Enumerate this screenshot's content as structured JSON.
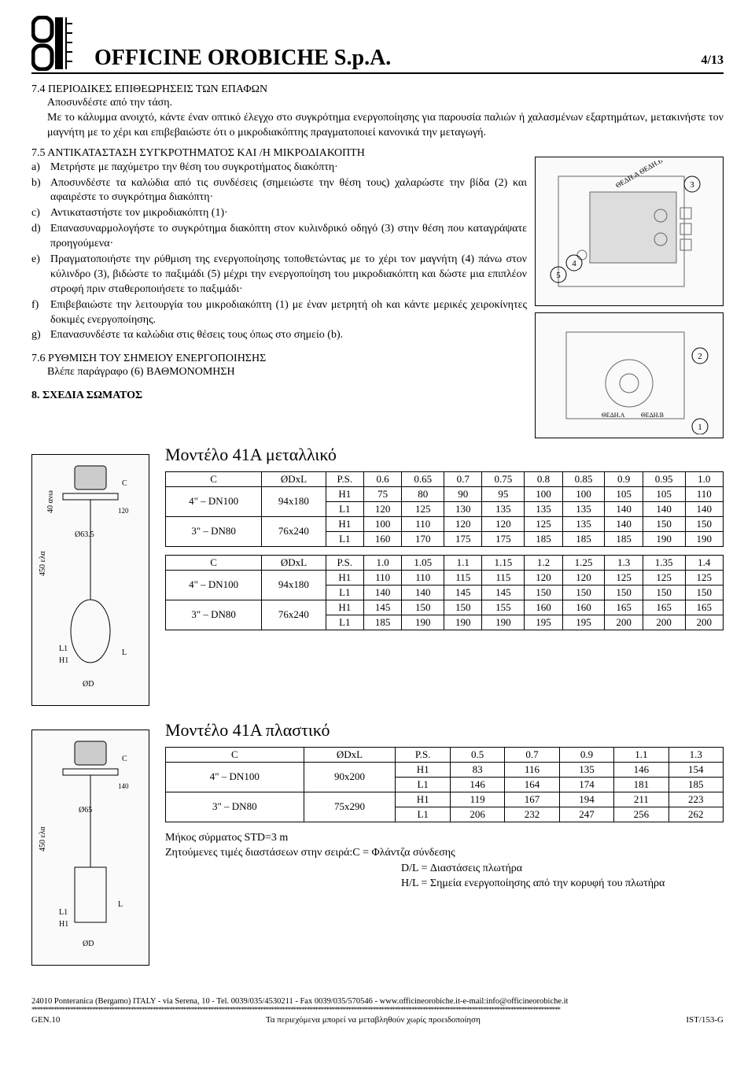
{
  "header": {
    "company": "OFFICINE OROBICHE  S.p.A.",
    "page": "4/13"
  },
  "s74": {
    "title": "7.4 ΠΕΡΙΟΔΙΚΕΣ ΕΠΙΘΕΩΡΗΣΕΙΣ ΤΩΝ ΕΠΑΦΩΝ",
    "l1": "Αποσυνδέστε από την τάση.",
    "l2": "Με το κάλυμμα ανοιχτό, κάντε έναν οπτικό έλεγχο στο συγκρότημα ενεργοποίησης για παρουσία παλιών ή χαλασμένων εξαρτημάτων, μετακινήστε τον μαγνήτη με το χέρι και επιβεβαιώστε ότι ο μικροδιακόπτης πραγματοποιεί κανονικά την μεταγωγή."
  },
  "s75": {
    "title": "7.5 ΑΝΤΙΚΑΤΑΣΤΑΣΗ ΣΥΓΚΡΟΤΗΜΑΤΟΣ ΚΑΙ /Η ΜΙΚΡΟΔΙΑΚΟΠΤΗ",
    "a": "Μετρήστε με παχύμετρο την θέση του συγκροτήματος διακόπτη·",
    "b": "Αποσυνδέστε τα καλώδια από τις συνδέσεις (σημειώστε την θέση τους) χαλαρώστε την βίδα (2) και αφαιρέστε το συγκρότημα διακόπτη·",
    "c": "Αντικαταστήστε τον μικροδιακόπτη (1)·",
    "d": "Επανασυναρμολογήστε το συγκρότημα διακόπτη στον κυλινδρικό οδηγό (3) στην θέση που καταγράψατε προηγούμενα·",
    "e": "Πραγματοποιήστε την ρύθμιση της ενεργοποίησης τοποθετώντας με το χέρι τον μαγνήτη (4) πάνω στον κύλινδρο (3), βιδώστε το παξιμάδι (5) μέχρι την ενεργοποίηση του μικροδιακόπτη και δώστε μια επιπλέον στροφή πριν σταθεροποιήσετε το παξιμάδι·",
    "f": "Επιβεβαιώστε την λειτουργία του μικροδιακόπτη (1) με έναν μετρητή oh και κάντε μερικές χειροκίνητες δοκιμές ενεργοποίησης.",
    "g": "Επανασυνδέστε τα καλώδια στις θέσεις τους όπως στο σημείο (b)."
  },
  "s76": {
    "title": "7.6 ΡΥΘΜΙΣΗ ΤΟΥ ΣΗΜΕΙΟΥ ΕΝΕΡΓΟΠΟΙΗΣΗΣ",
    "l1": "Βλέπε παράγραφο (6) ΒΑΘΜΟΝΟΜΗΣΗ"
  },
  "s8": {
    "title": "8. ΣΧΕΔΙΑ ΣΩΜΑΤΟΣ"
  },
  "models": {
    "m1": "Μοντέλο 41A μεταλλικό",
    "m2": "Μοντέλο 41A πλαστικό"
  },
  "table1": {
    "headers": [
      "C",
      "ØDxL",
      "P.S.",
      "0.6",
      "0.65",
      "0.7",
      "0.75",
      "0.8",
      "0.85",
      "0.9",
      "0.95",
      "1.0"
    ],
    "rows": [
      {
        "c": "4\" – DN100",
        "d": "94x180",
        "r": [
          [
            "H1",
            "75",
            "80",
            "90",
            "95",
            "100",
            "100",
            "105",
            "105",
            "110"
          ],
          [
            "L1",
            "120",
            "125",
            "130",
            "135",
            "135",
            "135",
            "140",
            "140",
            "140"
          ]
        ]
      },
      {
        "c": "3\" – DN80",
        "d": "76x240",
        "r": [
          [
            "H1",
            "100",
            "110",
            "120",
            "120",
            "125",
            "135",
            "140",
            "150",
            "150"
          ],
          [
            "L1",
            "160",
            "170",
            "175",
            "175",
            "185",
            "185",
            "185",
            "190",
            "190"
          ]
        ]
      }
    ]
  },
  "table2": {
    "headers": [
      "C",
      "ØDxL",
      "P.S.",
      "1.0",
      "1.05",
      "1.1",
      "1.15",
      "1.2",
      "1.25",
      "1.3",
      "1.35",
      "1.4"
    ],
    "rows": [
      {
        "c": "4\" – DN100",
        "d": "94x180",
        "r": [
          [
            "H1",
            "110",
            "110",
            "115",
            "115",
            "120",
            "120",
            "125",
            "125",
            "125"
          ],
          [
            "L1",
            "140",
            "140",
            "145",
            "145",
            "150",
            "150",
            "150",
            "150",
            "150"
          ]
        ]
      },
      {
        "c": "3\" – DN80",
        "d": "76x240",
        "r": [
          [
            "H1",
            "145",
            "150",
            "150",
            "155",
            "160",
            "160",
            "165",
            "165",
            "165"
          ],
          [
            "L1",
            "185",
            "190",
            "190",
            "190",
            "195",
            "195",
            "200",
            "200",
            "200"
          ]
        ]
      }
    ]
  },
  "table3": {
    "headers": [
      "C",
      "ØDxL",
      "P.S.",
      "0.5",
      "0.7",
      "0.9",
      "1.1",
      "1.3"
    ],
    "rows": [
      {
        "c": "4\" – DN100",
        "d": "90x200",
        "r": [
          [
            "H1",
            "83",
            "116",
            "135",
            "146",
            "154"
          ],
          [
            "L1",
            "146",
            "164",
            "174",
            "181",
            "185"
          ]
        ]
      },
      {
        "c": "3\" – DN80",
        "d": "75x290",
        "r": [
          [
            "H1",
            "119",
            "167",
            "194",
            "211",
            "223"
          ],
          [
            "L1",
            "206",
            "232",
            "247",
            "256",
            "262"
          ]
        ]
      }
    ]
  },
  "notes": {
    "n1": "Μήκος σύρματος STD=3 m",
    "n2": "Ζητούμενες τιμές διαστάσεων στην σειρά:C = Φλάντζα σύνδεσης",
    "n3": "D/L =  Διαστάσεις πλωτήρα",
    "n4": "H/L = Σημεία ενεργοποίησης από την κορυφή του πλωτήρα"
  },
  "footer": {
    "addr": "24010 Ponteranica (Bergamo) ITALY - via Serena, 10 - Tel. 0039/035/4530211 - Fax 0039/035/570546 - www.officineorobiche.it-e-mail:info@officineorobiche.it",
    "gen": "GEN.10",
    "mid": "Τα περιεχόμενα μπορεί να μεταβληθούν χωρίς προειδοποίηση",
    "doc": "IST/153-G"
  }
}
